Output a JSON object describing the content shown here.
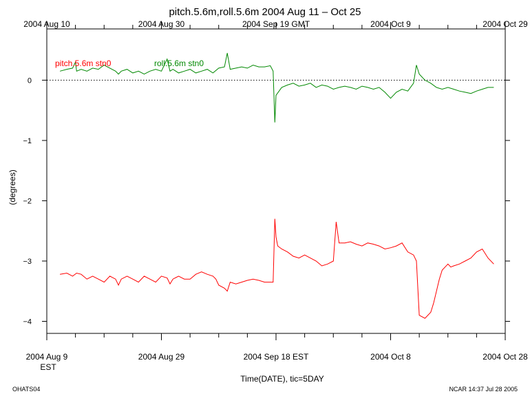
{
  "chart_data": {
    "type": "line",
    "title": "pitch.5.6m,roll.5.6m 2004 Aug 11 – Oct 25",
    "xlabel": "Time(DATE), tic=5DAY",
    "ylabel": "(degrees)",
    "ylim": [
      -4.2,
      0.85
    ],
    "xlim_days": [
      0,
      80
    ],
    "yticks": [
      {
        "value": 0,
        "label": "0"
      },
      {
        "value": -1,
        "label": "−1"
      },
      {
        "value": -2,
        "label": "−2"
      },
      {
        "value": -3,
        "label": "−3"
      },
      {
        "value": -4,
        "label": "−4"
      }
    ],
    "top_axis": {
      "labels": [
        {
          "day": 0,
          "label": "2004 Aug 10"
        },
        {
          "day": 20,
          "label": "2004 Aug 30"
        },
        {
          "day": 40,
          "label": "2004 Sep 19 GMT"
        },
        {
          "day": 60,
          "label": "2004 Oct  9"
        },
        {
          "day": 80,
          "label": "2004 Oct 29"
        }
      ]
    },
    "bottom_axis": {
      "labels": [
        {
          "day": 0,
          "label": "2004 Aug  9"
        },
        {
          "day": 20,
          "label": "2004 Aug 29"
        },
        {
          "day": 40,
          "label": "2004 Sep 18 EST"
        },
        {
          "day": 60,
          "label": "2004 Oct  8"
        },
        {
          "day": 80,
          "label": "2004 Oct 28"
        }
      ],
      "sublabel": "EST"
    },
    "legend_placement": "top-left",
    "zero_line": "dotted",
    "series": [
      {
        "name": "pitch.5.6m stn0",
        "color": "#ff0000",
        "x": [
          2.3,
          3.5,
          4.5,
          5.2,
          6.0,
          7.0,
          8.0,
          9.0,
          10.0,
          11.0,
          12.0,
          12.5,
          13.0,
          14.0,
          15.0,
          16.0,
          17.0,
          18.0,
          19.0,
          20.0,
          21.0,
          21.5,
          22.0,
          23.0,
          24.0,
          25.0,
          26.0,
          27.0,
          28.0,
          29.0,
          29.5,
          30.0,
          31.0,
          31.5,
          32.0,
          33.0,
          34.0,
          35.0,
          36.0,
          37.0,
          38.0,
          39.0,
          39.5,
          39.8,
          40.0,
          40.3,
          41.0,
          42.0,
          43.0,
          44.0,
          45.0,
          46.0,
          47.0,
          48.0,
          49.0,
          50.0,
          50.5,
          51.0,
          52.0,
          53.0,
          54.0,
          55.0,
          56.0,
          57.0,
          58.0,
          59.0,
          60.0,
          61.0,
          62.0,
          63.0,
          64.0,
          64.5,
          65.0,
          66.0,
          67.0,
          67.5,
          68.0,
          68.5,
          69.0,
          70.0,
          70.5,
          71.0,
          72.0,
          73.0,
          74.0,
          75.0,
          76.0,
          77.0,
          78.0
        ],
        "y": [
          -3.22,
          -3.2,
          -3.25,
          -3.2,
          -3.22,
          -3.3,
          -3.25,
          -3.3,
          -3.35,
          -3.25,
          -3.3,
          -3.4,
          -3.3,
          -3.25,
          -3.3,
          -3.35,
          -3.25,
          -3.3,
          -3.35,
          -3.25,
          -3.28,
          -3.38,
          -3.3,
          -3.25,
          -3.3,
          -3.3,
          -3.22,
          -3.18,
          -3.22,
          -3.25,
          -3.3,
          -3.4,
          -3.45,
          -3.5,
          -3.35,
          -3.38,
          -3.35,
          -3.32,
          -3.3,
          -3.32,
          -3.35,
          -3.35,
          -3.35,
          -2.3,
          -2.6,
          -2.75,
          -2.8,
          -2.85,
          -2.92,
          -2.95,
          -2.9,
          -2.95,
          -3.0,
          -3.08,
          -3.05,
          -3.0,
          -2.35,
          -2.7,
          -2.7,
          -2.68,
          -2.72,
          -2.75,
          -2.7,
          -2.72,
          -2.75,
          -2.8,
          -2.78,
          -2.75,
          -2.7,
          -2.85,
          -2.9,
          -3.0,
          -3.9,
          -3.95,
          -3.85,
          -3.7,
          -3.5,
          -3.3,
          -3.15,
          -3.05,
          -3.1,
          -3.08,
          -3.05,
          -3.0,
          -2.95,
          -2.85,
          -2.8,
          -2.95,
          -3.05
        ]
      },
      {
        "name": "roll.5.6m stn0",
        "color": "#008800",
        "x": [
          2.3,
          3.5,
          4.5,
          5.0,
          5.2,
          6.0,
          7.0,
          8.0,
          9.0,
          10.0,
          11.0,
          12.0,
          12.5,
          13.0,
          14.0,
          15.0,
          16.0,
          17.0,
          18.0,
          19.0,
          20.0,
          21.0,
          21.5,
          22.0,
          23.0,
          24.0,
          25.0,
          26.0,
          27.0,
          28.0,
          29.0,
          30.0,
          31.0,
          31.5,
          32.0,
          33.0,
          34.0,
          35.0,
          36.0,
          37.0,
          38.0,
          39.0,
          39.5,
          39.8,
          40.0,
          41.0,
          42.0,
          43.0,
          44.0,
          45.0,
          46.0,
          47.0,
          48.0,
          49.0,
          50.0,
          51.0,
          52.0,
          53.0,
          54.0,
          55.0,
          56.0,
          57.0,
          58.0,
          59.0,
          60.0,
          61.0,
          62.0,
          63.0,
          64.0,
          64.5,
          65.0,
          66.0,
          67.0,
          68.0,
          69.0,
          70.0,
          71.0,
          72.0,
          73.0,
          74.0,
          75.0,
          76.0,
          77.0,
          78.0
        ],
        "y": [
          0.15,
          0.18,
          0.2,
          0.3,
          0.15,
          0.18,
          0.15,
          0.2,
          0.18,
          0.25,
          0.2,
          0.15,
          0.1,
          0.15,
          0.18,
          0.12,
          0.15,
          0.1,
          0.15,
          0.18,
          0.15,
          0.35,
          0.15,
          0.18,
          0.12,
          0.15,
          0.18,
          0.12,
          0.15,
          0.18,
          0.12,
          0.2,
          0.22,
          0.45,
          0.18,
          0.2,
          0.22,
          0.2,
          0.25,
          0.22,
          0.22,
          0.24,
          0.15,
          -0.7,
          -0.25,
          -0.12,
          -0.08,
          -0.05,
          -0.1,
          -0.08,
          -0.05,
          -0.12,
          -0.08,
          -0.1,
          -0.15,
          -0.12,
          -0.1,
          -0.12,
          -0.15,
          -0.1,
          -0.12,
          -0.15,
          -0.12,
          -0.2,
          -0.3,
          -0.2,
          -0.15,
          -0.18,
          -0.05,
          0.25,
          0.1,
          0.0,
          -0.05,
          -0.12,
          -0.15,
          -0.12,
          -0.15,
          -0.18,
          -0.2,
          -0.22,
          -0.18,
          -0.15,
          -0.12,
          -0.12
        ]
      }
    ]
  },
  "footer": {
    "left": "OHATS04",
    "right": "NCAR 14:37 Jul 28 2005"
  }
}
